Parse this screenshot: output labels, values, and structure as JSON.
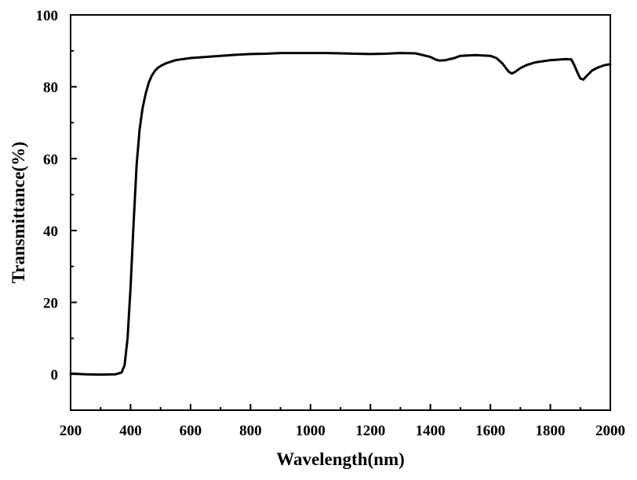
{
  "chart_data": {
    "type": "line",
    "xlabel": "Wavelength(nm)",
    "ylabel": "Transmittance(%)",
    "xlim": [
      200,
      2000
    ],
    "ylim": [
      -10,
      100
    ],
    "xticks": [
      200,
      400,
      600,
      800,
      1000,
      1200,
      1400,
      1600,
      1800,
      2000
    ],
    "yticks": [
      0,
      20,
      40,
      60,
      80,
      100
    ],
    "grid": false,
    "legend": "none",
    "line_color": "#000000",
    "series": [
      {
        "x": [
          200,
          250,
          300,
          350,
          370,
          380,
          390,
          400,
          410,
          420,
          430,
          440,
          450,
          460,
          470,
          480,
          490,
          500,
          520,
          550,
          600,
          650,
          700,
          750,
          800,
          850,
          900,
          950,
          1000,
          1050,
          1100,
          1150,
          1200,
          1250,
          1300,
          1350,
          1400,
          1420,
          1430,
          1450,
          1480,
          1500,
          1550,
          1600,
          1620,
          1640,
          1660,
          1670,
          1680,
          1700,
          1720,
          1750,
          1800,
          1850,
          1870,
          1880,
          1890,
          1900,
          1910,
          1920,
          1940,
          1960,
          1980,
          2000
        ],
        "y": [
          0.2,
          0.0,
          -0.1,
          0.0,
          0.5,
          2.5,
          10,
          24,
          42,
          58,
          68,
          74,
          78,
          81,
          83,
          84.3,
          85.2,
          85.8,
          86.6,
          87.4,
          88.0,
          88.3,
          88.6,
          88.9,
          89.1,
          89.2,
          89.4,
          89.4,
          89.4,
          89.4,
          89.3,
          89.2,
          89.1,
          89.2,
          89.4,
          89.3,
          88.3,
          87.5,
          87.3,
          87.4,
          88.0,
          88.6,
          88.8,
          88.6,
          88.0,
          86.5,
          84.3,
          83.7,
          84.0,
          85.2,
          86.0,
          86.8,
          87.4,
          87.7,
          87.6,
          86.0,
          84.0,
          82.3,
          82.0,
          82.9,
          84.6,
          85.4,
          86.0,
          86.3
        ]
      }
    ]
  }
}
